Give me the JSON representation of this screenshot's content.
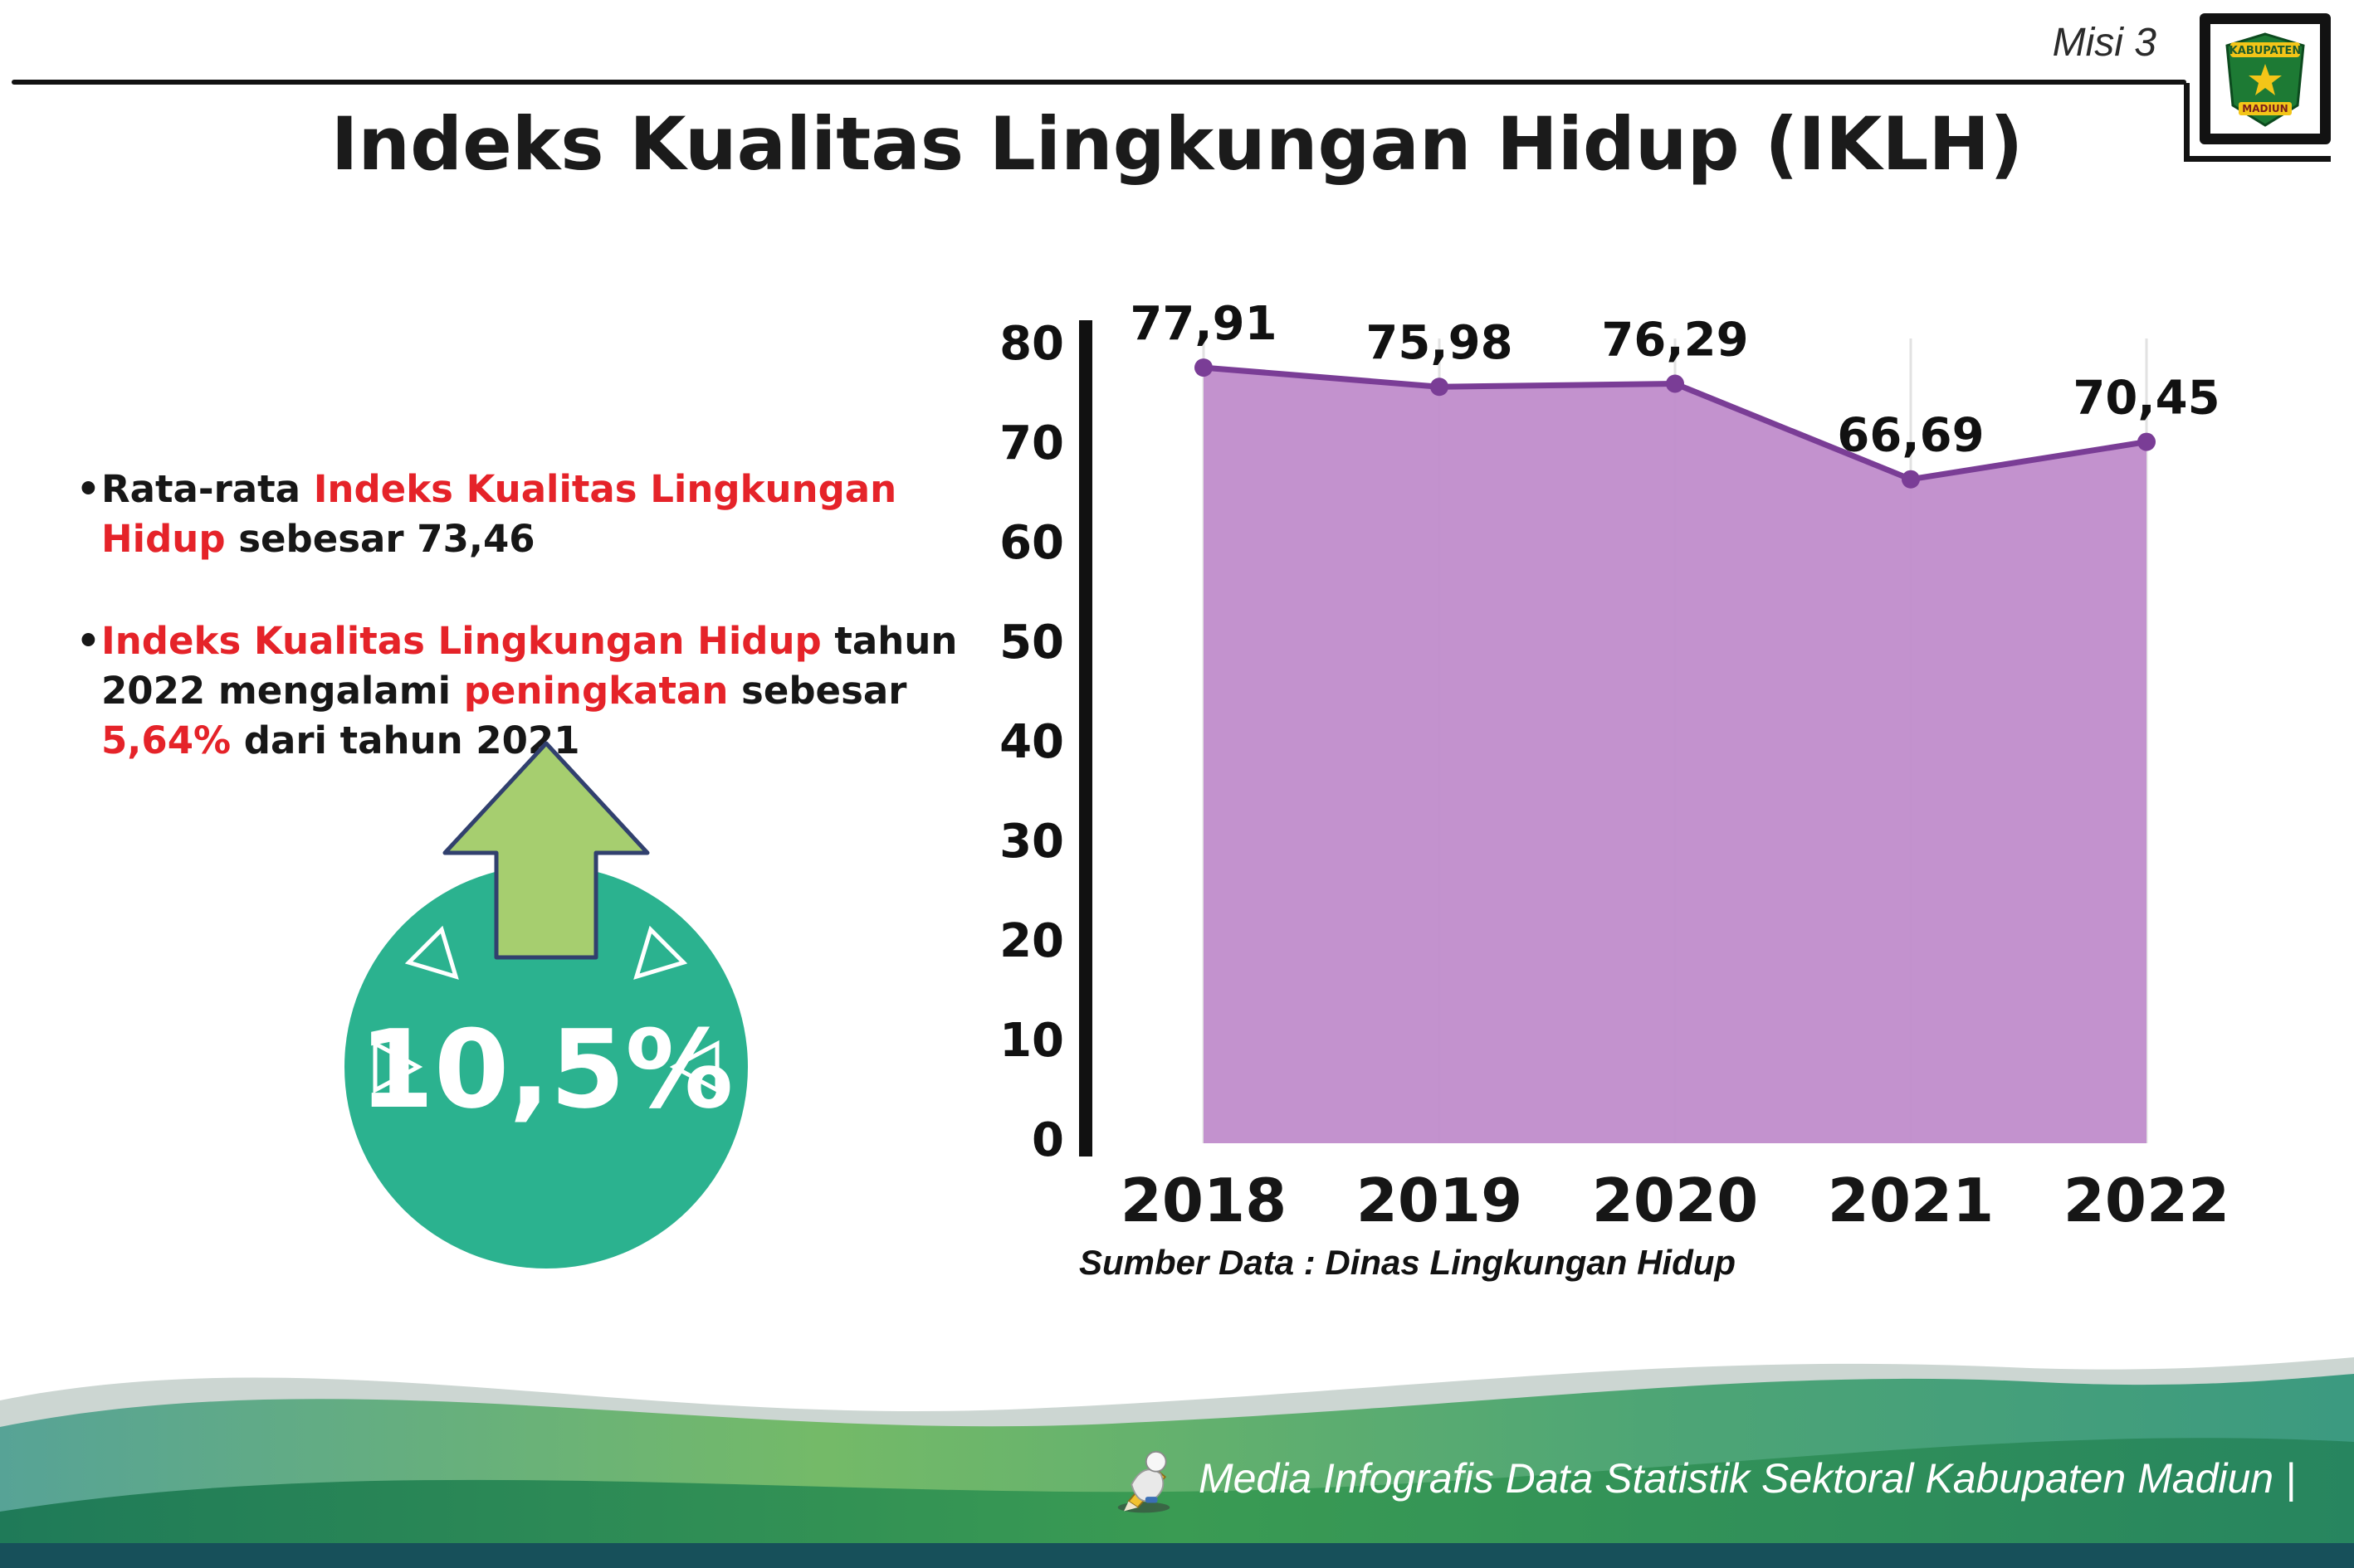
{
  "header": {
    "misi_label": "Misi 3",
    "title": "Indeks Kualitas Lingkungan Hidup (IKLH)",
    "logo": {
      "line1": "KABUPATEN",
      "line2": "MADIUN"
    }
  },
  "bullets": [
    {
      "segments": [
        {
          "text": "Rata-rata ",
          "style": "normal"
        },
        {
          "text": "Indeks Kualitas Lingkungan Hidup",
          "style": "red"
        },
        {
          "text": " sebesar 73,46",
          "style": "normal"
        }
      ]
    },
    {
      "segments": [
        {
          "text": "Indeks Kualitas Lingkungan Hidup",
          "style": "red"
        },
        {
          "text": " tahun 2022 mengalami ",
          "style": "normal"
        },
        {
          "text": "peningkatan",
          "style": "red"
        },
        {
          "text": " sebesar ",
          "style": "normal"
        },
        {
          "text": "5,64%",
          "style": "red"
        },
        {
          "text": " dari tahun 2021",
          "style": "normal"
        }
      ]
    }
  ],
  "increase_badge": {
    "value": "10,5%",
    "circle_color": "#2bb28f",
    "arrow_color": "#a6ce6f"
  },
  "chart_data": {
    "type": "area",
    "title": "Indeks Kualitas Lingkungan Hidup (IKLH)",
    "categories": [
      "2018",
      "2019",
      "2020",
      "2021",
      "2022"
    ],
    "values": [
      77.91,
      75.98,
      76.29,
      66.69,
      70.45
    ],
    "point_labels": [
      "77,91",
      "75,98",
      "76,29",
      "66,69",
      "70,45"
    ],
    "xlabel": "",
    "ylabel": "",
    "ylim": [
      0,
      80
    ],
    "yticks": [
      0,
      10,
      20,
      30,
      40,
      50,
      60,
      70,
      80
    ],
    "grid": "vertical-light",
    "legend": "none",
    "line_color": "#7a3d96",
    "fill_color": "#c08ccb",
    "source_note": "Sumber Data : Dinas Lingkungan Hidup"
  },
  "footer": {
    "caption": "Media Infografis Data Statistik Sektoral Kabupaten Madiun |"
  }
}
